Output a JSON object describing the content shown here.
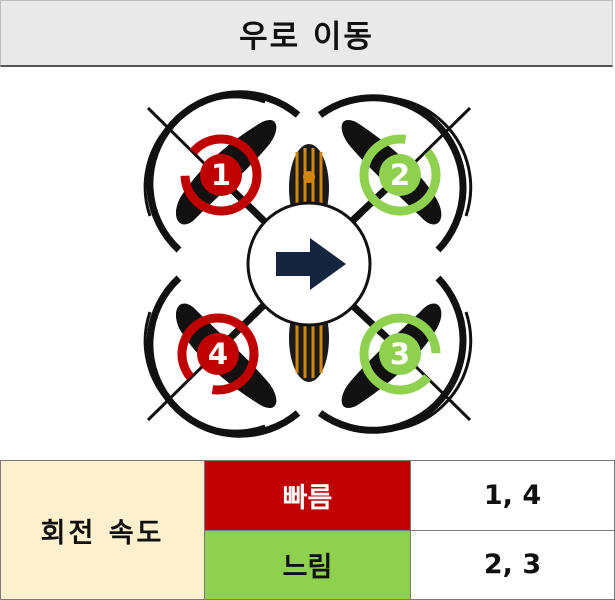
{
  "title": "우로 이동",
  "diagram": {
    "direction_icon": "right-arrow-icon",
    "rotors": [
      {
        "number": "1",
        "speed": "fast",
        "rotation": "clockwise"
      },
      {
        "number": "2",
        "speed": "slow",
        "rotation": "counterclockwise"
      },
      {
        "number": "3",
        "speed": "slow",
        "rotation": "clockwise"
      },
      {
        "number": "4",
        "speed": "fast",
        "rotation": "counterclockwise"
      }
    ],
    "colors": {
      "fast": "#c00000",
      "slow": "#8fd14f",
      "arrow": "#16253f",
      "frame": "#111111",
      "body_accent": "#d4860b"
    }
  },
  "legend": {
    "label": "회전 속도",
    "fast_label": "빠름",
    "fast_rotors": "1, 4",
    "slow_label": "느림",
    "slow_rotors": "2, 3",
    "colors": {
      "label_bg": "#fdf0cf",
      "fast_bg": "#c00000",
      "slow_bg": "#8fd14f"
    }
  }
}
